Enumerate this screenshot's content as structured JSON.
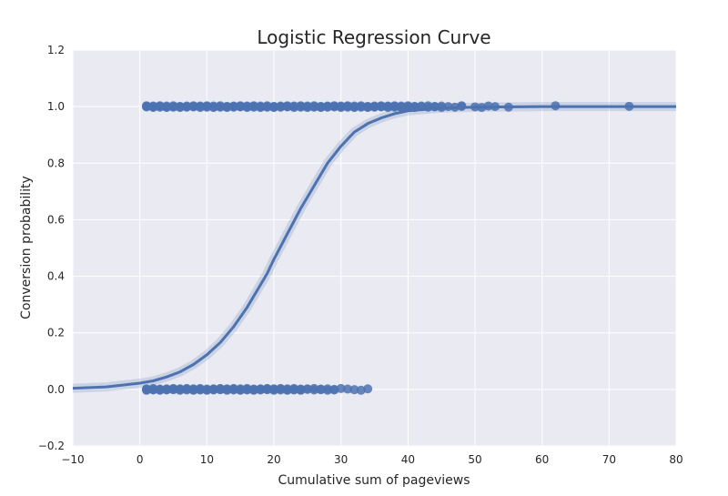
{
  "chart_data": {
    "type": "scatter",
    "title": "Logistic Regression Curve",
    "xlabel": "Cumulative sum of pageviews",
    "ylabel": "Conversion probability",
    "xlim": [
      -10,
      80
    ],
    "ylim": [
      -0.2,
      1.2
    ],
    "xticks": [
      -10,
      0,
      10,
      20,
      30,
      40,
      50,
      60,
      70,
      80
    ],
    "xtick_labels": [
      "−10",
      "0",
      "10",
      "20",
      "30",
      "40",
      "50",
      "60",
      "70",
      "80"
    ],
    "yticks": [
      -0.2,
      0.0,
      0.2,
      0.4,
      0.6,
      0.8,
      1.0,
      1.2
    ],
    "ytick_labels": [
      "−0.2",
      "0.0",
      "0.2",
      "0.4",
      "0.6",
      "0.8",
      "1.0",
      "1.2"
    ],
    "grid": true,
    "legend": "none",
    "colors": {
      "series": "#4c72b0",
      "background": "#eaeaf2",
      "grid": "#ffffff",
      "text": "#262626"
    },
    "series": [
      {
        "type": "scatter",
        "x": [
          1,
          1,
          1,
          2,
          2,
          2,
          3,
          3,
          3,
          4,
          4,
          4,
          5,
          5,
          5,
          6,
          6,
          6,
          7,
          7,
          7,
          8,
          8,
          8,
          9,
          9,
          9,
          10,
          10,
          10,
          11,
          11,
          11,
          12,
          12,
          12,
          13,
          13,
          13,
          14,
          14,
          14,
          15,
          15,
          15,
          16,
          16,
          16,
          17,
          17,
          17,
          18,
          18,
          18,
          19,
          19,
          19,
          20,
          20,
          20,
          21,
          21,
          21,
          22,
          22,
          22,
          23,
          23,
          23,
          24,
          24,
          24,
          25,
          25,
          25,
          26,
          26,
          26,
          27,
          27,
          27,
          28,
          28,
          28,
          29,
          29,
          29,
          30,
          30,
          30,
          31,
          31,
          31,
          32,
          32,
          32,
          33,
          33,
          33,
          34,
          34,
          34,
          35,
          35,
          35,
          36,
          36,
          36,
          37,
          37,
          37,
          38,
          38,
          38,
          39,
          39,
          39,
          40,
          40,
          40,
          41,
          41,
          41,
          42,
          42,
          43,
          43,
          44,
          44,
          45,
          45,
          46,
          47,
          48,
          48,
          50,
          51,
          52,
          53,
          55,
          62,
          73
        ],
        "y": [
          1,
          1,
          1,
          1,
          1,
          1,
          1,
          1,
          1,
          1,
          1,
          1,
          1,
          1,
          1,
          1,
          1,
          1,
          1,
          1,
          1,
          1,
          1,
          1,
          1,
          1,
          1,
          1,
          1,
          1,
          1,
          1,
          1,
          1,
          1,
          1,
          1,
          1,
          1,
          1,
          1,
          1,
          1,
          1,
          1,
          1,
          1,
          1,
          1,
          1,
          1,
          1,
          1,
          1,
          1,
          1,
          1,
          1,
          1,
          1,
          1,
          1,
          1,
          1,
          1,
          1,
          1,
          1,
          1,
          1,
          1,
          1,
          1,
          1,
          1,
          1,
          1,
          1,
          1,
          1,
          1,
          1,
          1,
          1,
          1,
          1,
          1,
          1,
          1,
          1,
          1,
          1,
          1,
          1,
          1,
          1,
          1,
          1,
          1,
          1,
          1,
          1,
          1,
          1,
          1,
          1,
          1,
          1,
          1,
          1,
          1,
          1,
          1,
          1,
          1,
          1,
          1,
          1,
          1,
          1,
          1,
          1,
          1,
          1,
          1,
          1,
          1,
          1,
          1,
          1,
          1,
          1,
          1,
          1,
          1,
          1,
          1,
          1,
          1,
          1,
          1,
          1
        ]
      },
      {
        "type": "scatter",
        "x": [
          1,
          1,
          1,
          2,
          2,
          2,
          3,
          3,
          3,
          4,
          4,
          4,
          5,
          5,
          5,
          6,
          6,
          6,
          7,
          7,
          7,
          8,
          8,
          8,
          9,
          9,
          9,
          10,
          10,
          10,
          11,
          11,
          11,
          12,
          12,
          12,
          13,
          13,
          13,
          14,
          14,
          14,
          15,
          15,
          15,
          16,
          16,
          16,
          17,
          17,
          17,
          18,
          18,
          18,
          19,
          19,
          19,
          20,
          20,
          20,
          21,
          21,
          21,
          22,
          22,
          22,
          23,
          23,
          23,
          24,
          24,
          24,
          25,
          25,
          26,
          26,
          27,
          27,
          28,
          28,
          29,
          29,
          30,
          31,
          32,
          33,
          34
        ],
        "y": [
          0,
          0,
          0,
          0,
          0,
          0,
          0,
          0,
          0,
          0,
          0,
          0,
          0,
          0,
          0,
          0,
          0,
          0,
          0,
          0,
          0,
          0,
          0,
          0,
          0,
          0,
          0,
          0,
          0,
          0,
          0,
          0,
          0,
          0,
          0,
          0,
          0,
          0,
          0,
          0,
          0,
          0,
          0,
          0,
          0,
          0,
          0,
          0,
          0,
          0,
          0,
          0,
          0,
          0,
          0,
          0,
          0,
          0,
          0,
          0,
          0,
          0,
          0,
          0,
          0,
          0,
          0,
          0,
          0,
          0,
          0,
          0,
          0,
          0,
          0,
          0,
          0,
          0,
          0,
          0,
          0,
          0,
          0,
          0,
          0,
          0,
          0
        ]
      },
      {
        "type": "line",
        "x": [
          -10,
          -5,
          0,
          2,
          4,
          6,
          8,
          10,
          12,
          14,
          16,
          18,
          19,
          20,
          22,
          24,
          26,
          28,
          30,
          32,
          34,
          36,
          38,
          40,
          45,
          50,
          60,
          70,
          80
        ],
        "y": [
          0.004,
          0.009,
          0.022,
          0.03,
          0.044,
          0.062,
          0.088,
          0.122,
          0.166,
          0.222,
          0.29,
          0.37,
          0.41,
          0.46,
          0.55,
          0.64,
          0.72,
          0.8,
          0.86,
          0.91,
          0.94,
          0.96,
          0.975,
          0.985,
          0.995,
          0.998,
          1.0,
          1.0,
          1.0
        ]
      }
    ]
  }
}
